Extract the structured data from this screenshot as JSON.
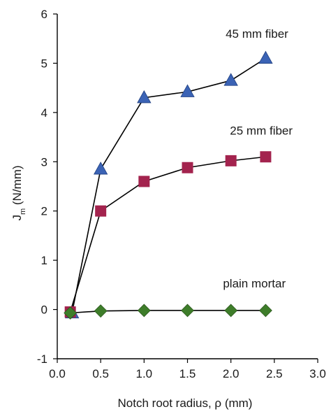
{
  "chart_data": {
    "type": "scatter",
    "xlabel": "Notch root radius, ρ (mm)",
    "ylabel": "Jm (N/mm)",
    "ylabel_main": "J",
    "ylabel_sub": "m",
    "ylabel_unit": " (N/mm)",
    "xlim": [
      0.0,
      3.0
    ],
    "ylim": [
      -1,
      6
    ],
    "xticks": [
      "0.0",
      "0.5",
      "1.0",
      "1.5",
      "2.0",
      "2.5",
      "3.0"
    ],
    "yticks": [
      "-1",
      "0",
      "1",
      "2",
      "3",
      "4",
      "5",
      "6"
    ],
    "grid": false,
    "series": [
      {
        "name": "45 mm fiber",
        "marker": "triangle",
        "color": "#3b63b5",
        "x": [
          0.17,
          0.5,
          1.0,
          1.5,
          2.0,
          2.4
        ],
        "y": [
          -0.07,
          2.85,
          4.3,
          4.42,
          4.65,
          5.1
        ]
      },
      {
        "name": "25 mm fiber",
        "marker": "square",
        "color": "#a3234e",
        "x": [
          0.15,
          0.5,
          1.0,
          1.5,
          2.0,
          2.4
        ],
        "y": [
          -0.05,
          2.0,
          2.6,
          2.88,
          3.02,
          3.1
        ]
      },
      {
        "name": "plain mortar",
        "marker": "diamond",
        "color": "#3e7d2a",
        "x": [
          0.15,
          0.5,
          1.0,
          1.5,
          2.0,
          2.4
        ],
        "y": [
          -0.07,
          -0.03,
          -0.02,
          -0.02,
          -0.02,
          -0.02
        ]
      }
    ],
    "annotations": [
      {
        "text": "45 mm fiber",
        "x": 2.3,
        "y": 5.52
      },
      {
        "text": "25 mm fiber",
        "x": 2.35,
        "y": 3.55
      },
      {
        "text": "plain mortar",
        "x": 2.27,
        "y": 0.45
      }
    ]
  }
}
